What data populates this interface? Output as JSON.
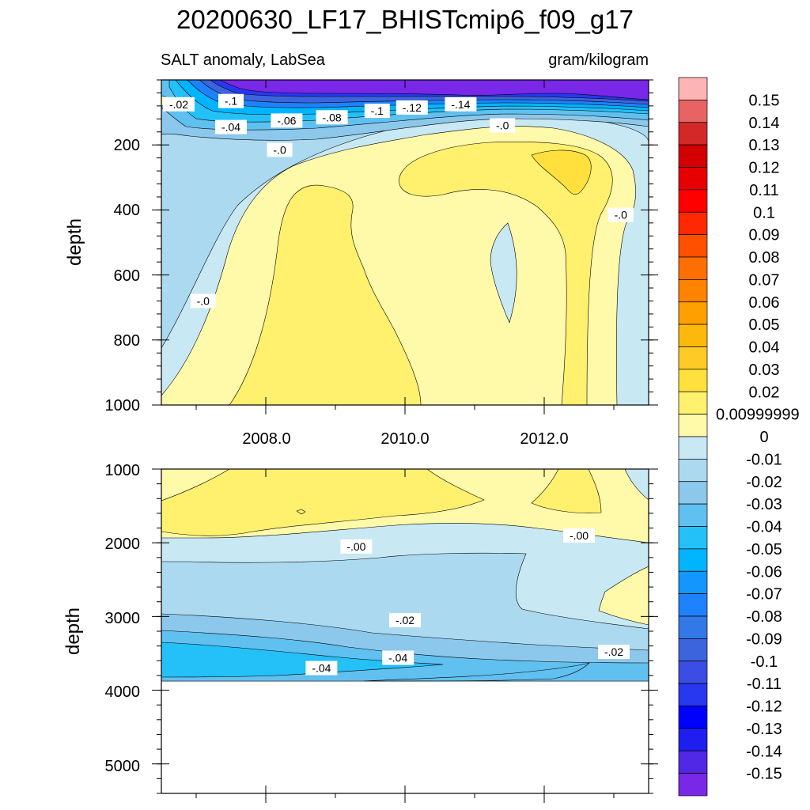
{
  "chart_data": {
    "type": "contour",
    "title": "20200630_LF17_BHISTcmip6_f09_g17",
    "variable_label": "SALT anomaly, LabSea",
    "units_label": "gram/kilogram",
    "x": {
      "range": [
        2006.5,
        2013.5
      ],
      "ticks": [
        2008.0,
        2010.0,
        2012.0
      ],
      "tick_labels": [
        "2008.0",
        "2010.0",
        "2012.0"
      ],
      "minor_ticks": [
        2007.0,
        2008.0,
        2009.0,
        2010.0,
        2011.0,
        2012.0,
        2013.0
      ]
    },
    "panels": [
      {
        "name": "upper",
        "ylabel": "depth",
        "ylim": [
          0,
          1000
        ],
        "y_ticks": [
          200,
          400,
          600,
          800,
          1000
        ],
        "y_tick_labels": [
          "200",
          "400",
          "600",
          "800",
          "1000"
        ],
        "x_tick_labels_shown": true,
        "contour_labels": [
          {
            "text": "-.02",
            "x": 2006.75,
            "y": 75
          },
          {
            "text": "-.1",
            "x": 2007.5,
            "y": 65
          },
          {
            "text": "-.04",
            "x": 2007.5,
            "y": 145
          },
          {
            "text": "-.06",
            "x": 2008.3,
            "y": 125
          },
          {
            "text": "-.08",
            "x": 2008.95,
            "y": 115
          },
          {
            "text": "-.1",
            "x": 2009.6,
            "y": 95
          },
          {
            "text": "-.12",
            "x": 2010.1,
            "y": 85
          },
          {
            "text": "-.14",
            "x": 2010.8,
            "y": 75
          },
          {
            "text": "-.0",
            "x": 2011.4,
            "y": 140
          },
          {
            "text": "-.0",
            "x": 2008.2,
            "y": 215
          },
          {
            "text": "-.0",
            "x": 2013.1,
            "y": 415
          },
          {
            "text": "-.0",
            "x": 2007.1,
            "y": 680
          }
        ]
      },
      {
        "name": "lower",
        "ylabel": "depth",
        "ylim": [
          1000,
          5400
        ],
        "y_ticks": [
          1000,
          2000,
          3000,
          4000,
          5000
        ],
        "y_tick_labels": [
          "1000",
          "2000",
          "3000",
          "4000",
          "5000"
        ],
        "x_tick_labels_shown": false,
        "contour_labels": [
          {
            "text": "-.00",
            "x": 2009.3,
            "y": 2050
          },
          {
            "text": "-.00",
            "x": 2012.5,
            "y": 1900
          },
          {
            "text": "-.02",
            "x": 2010.0,
            "y": 3050
          },
          {
            "text": "-.02",
            "x": 2013.0,
            "y": 3480
          },
          {
            "text": "-.04",
            "x": 2008.8,
            "y": 3700
          },
          {
            "text": "-.04",
            "x": 2009.9,
            "y": 3560
          }
        ]
      }
    ],
    "colorbar": {
      "levels": [
        "0.15",
        "0.14",
        "0.13",
        "0.12",
        "0.11",
        "0.1",
        "0.09",
        "0.08",
        "0.07",
        "0.06",
        "0.05",
        "0.04",
        "0.03",
        "0.02",
        "0.00999999",
        "0",
        "-0.01",
        "-0.02",
        "-0.03",
        "-0.04",
        "-0.05",
        "-0.06",
        "-0.07",
        "-0.08",
        "-0.09",
        "-0.1",
        "-0.11",
        "-0.12",
        "-0.13",
        "-0.14",
        "-0.15"
      ],
      "colors": [
        "#fcb4b4",
        "#e86464",
        "#d42828",
        "#d20000",
        "#e60000",
        "#ff0000",
        "#ff2800",
        "#ff5000",
        "#ff6e00",
        "#ff8200",
        "#ff9f00",
        "#fdb90b",
        "#fecb26",
        "#ffe03c",
        "#fff06e",
        "#fff9aa",
        "#c8e8f4",
        "#abdaf0",
        "#8cc8ec",
        "#60c0f0",
        "#24c0f8",
        "#00b4ff",
        "#1496ff",
        "#1e82ff",
        "#3278e6",
        "#3c64dc",
        "#3c4de6",
        "#2838f0",
        "#0000ff",
        "#1e1ef0",
        "#5028e6",
        "#7828e6"
      ]
    },
    "colors": {
      "pos_0_01": "#fff9aa",
      "pos_0_02": "#fff06e",
      "pos_0_03": "#ffe03c",
      "neg_0_01": "#c8e8f4",
      "neg_0_02": "#abdaf0",
      "neg_0_03": "#8cc8ec",
      "neg_0_04": "#60c0f0",
      "neg_0_05": "#24c0f8",
      "neg_0_06": "#00b4ff",
      "neg_0_08": "#1e82ff",
      "neg_0_10": "#3c64dc",
      "neg_0_12": "#2838f0",
      "neg_0_15": "#7828e6"
    }
  }
}
